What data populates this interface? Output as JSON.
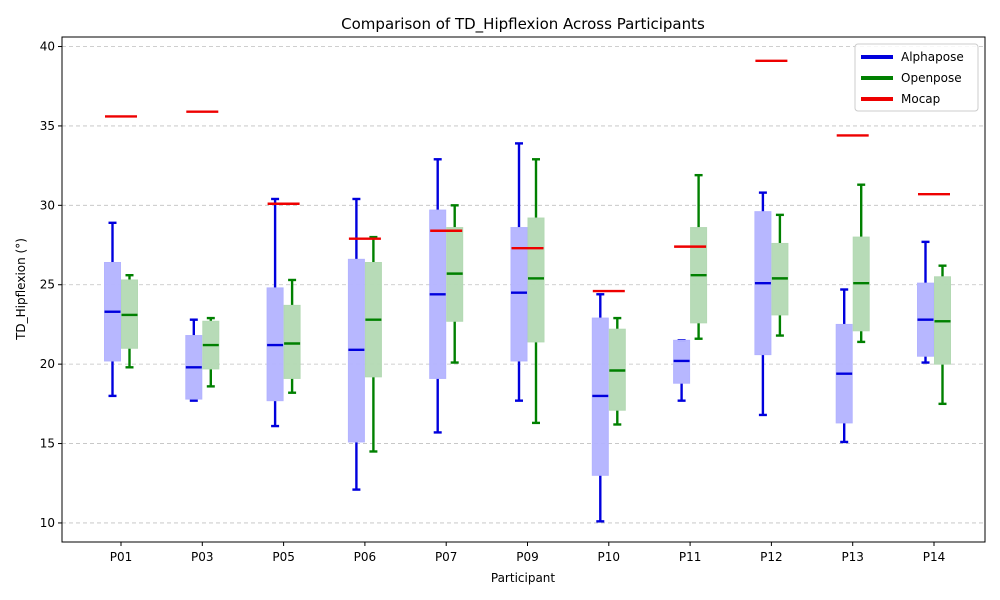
{
  "chart_data": {
    "type": "box",
    "title": "Comparison of TD_Hipflexion Across Participants",
    "xlabel": "Participant",
    "ylabel": "TD_Hipflexion (°)",
    "ylim": [
      8.8,
      40.6
    ],
    "yticks": [
      10,
      15,
      20,
      25,
      30,
      35,
      40
    ],
    "grid": "y-dashed",
    "legend_position": "top-right",
    "categories": [
      "P01",
      "P03",
      "P05",
      "P06",
      "P07",
      "P09",
      "P10",
      "P11",
      "P12",
      "P13",
      "P14"
    ],
    "series": [
      {
        "name": "Alphapose",
        "color": "#0000dd",
        "fill": "#b3b3ff",
        "boxes": [
          {
            "whislo": 18.0,
            "q1": 20.2,
            "med": 23.3,
            "q3": 26.4,
            "whishi": 28.9
          },
          {
            "whislo": 17.7,
            "q1": 17.8,
            "med": 19.8,
            "q3": 21.8,
            "whishi": 22.8
          },
          {
            "whislo": 16.1,
            "q1": 17.7,
            "med": 21.2,
            "q3": 24.8,
            "whishi": 30.4
          },
          {
            "whislo": 12.1,
            "q1": 15.1,
            "med": 20.9,
            "q3": 26.6,
            "whishi": 30.4
          },
          {
            "whislo": 15.7,
            "q1": 19.1,
            "med": 24.4,
            "q3": 29.7,
            "whishi": 32.9
          },
          {
            "whislo": 17.7,
            "q1": 20.2,
            "med": 24.5,
            "q3": 28.6,
            "whishi": 33.9
          },
          {
            "whislo": 10.1,
            "q1": 13.0,
            "med": 18.0,
            "q3": 22.9,
            "whishi": 24.4
          },
          {
            "whislo": 17.7,
            "q1": 18.8,
            "med": 20.2,
            "q3": 21.5,
            "whishi": 21.5
          },
          {
            "whislo": 16.8,
            "q1": 20.6,
            "med": 25.1,
            "q3": 29.6,
            "whishi": 30.8
          },
          {
            "whislo": 15.1,
            "q1": 16.3,
            "med": 19.4,
            "q3": 22.5,
            "whishi": 24.7
          },
          {
            "whislo": 20.1,
            "q1": 20.5,
            "med": 22.8,
            "q3": 25.1,
            "whishi": 27.7
          }
        ]
      },
      {
        "name": "Openpose",
        "color": "#008000",
        "fill": "#b3d9b3",
        "boxes": [
          {
            "whislo": 19.8,
            "q1": 21.0,
            "med": 23.1,
            "q3": 25.3,
            "whishi": 25.6
          },
          {
            "whislo": 18.6,
            "q1": 19.7,
            "med": 21.2,
            "q3": 22.7,
            "whishi": 22.9
          },
          {
            "whislo": 18.2,
            "q1": 19.1,
            "med": 21.3,
            "q3": 23.7,
            "whishi": 25.3
          },
          {
            "whislo": 14.5,
            "q1": 19.2,
            "med": 22.8,
            "q3": 26.4,
            "whishi": 28.0
          },
          {
            "whislo": 20.1,
            "q1": 22.7,
            "med": 25.7,
            "q3": 28.6,
            "whishi": 30.0
          },
          {
            "whislo": 16.3,
            "q1": 21.4,
            "med": 25.4,
            "q3": 29.2,
            "whishi": 32.9
          },
          {
            "whislo": 16.2,
            "q1": 17.1,
            "med": 19.6,
            "q3": 22.2,
            "whishi": 22.9
          },
          {
            "whislo": 21.6,
            "q1": 22.6,
            "med": 25.6,
            "q3": 28.6,
            "whishi": 31.9
          },
          {
            "whislo": 21.8,
            "q1": 23.1,
            "med": 25.4,
            "q3": 27.6,
            "whishi": 29.4
          },
          {
            "whislo": 21.4,
            "q1": 22.1,
            "med": 25.1,
            "q3": 28.0,
            "whishi": 31.3
          },
          {
            "whislo": 17.5,
            "q1": 20.0,
            "med": 22.7,
            "q3": 25.5,
            "whishi": 26.2
          }
        ]
      },
      {
        "name": "Mocap",
        "color": "#ee0000",
        "values": [
          35.6,
          35.9,
          30.1,
          27.9,
          28.4,
          27.3,
          24.6,
          27.4,
          39.1,
          34.4,
          30.7
        ]
      }
    ]
  }
}
